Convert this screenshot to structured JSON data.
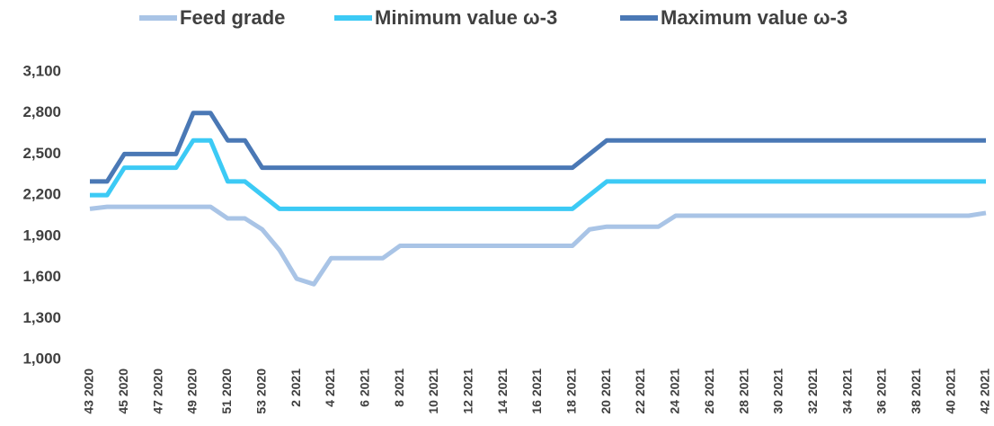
{
  "chart_data": {
    "type": "line",
    "categories": [
      "43 2020",
      null,
      "45 2020",
      null,
      "47 2020",
      null,
      "49 2020",
      null,
      "51 2020",
      null,
      "53 2020",
      null,
      "2 2021",
      null,
      "4 2021",
      null,
      "6 2021",
      null,
      "8 2021",
      null,
      "10 2021",
      null,
      "12 2021",
      null,
      "14 2021",
      null,
      "16 2021",
      null,
      "18 2021",
      null,
      "20 2021",
      null,
      "22 2021",
      null,
      "24 2021",
      null,
      "26 2021",
      null,
      "28 2021",
      null,
      "30 2021",
      null,
      "32 2021",
      null,
      "34 2021",
      null,
      "36 2021",
      null,
      "38 2021",
      null,
      "40 2021",
      null,
      "42 2021"
    ],
    "series": [
      {
        "name": "Feed grade",
        "color": "#a9c4e6",
        "values": [
          2100,
          2115,
          2115,
          2115,
          2115,
          2115,
          2115,
          2115,
          2030,
          2030,
          1950,
          1800,
          1590,
          1550,
          1740,
          1740,
          1740,
          1740,
          1830,
          1830,
          1830,
          1830,
          1830,
          1830,
          1830,
          1830,
          1830,
          1830,
          1830,
          1950,
          1970,
          1970,
          1970,
          1970,
          2050,
          2050,
          2050,
          2050,
          2050,
          2050,
          2050,
          2050,
          2050,
          2050,
          2050,
          2050,
          2050,
          2050,
          2050,
          2050,
          2050,
          2050,
          2070
        ]
      },
      {
        "name": "Minimum value ω-3",
        "color": "#3ccaf5",
        "values": [
          2200,
          2200,
          2400,
          2400,
          2400,
          2400,
          2600,
          2600,
          2300,
          2300,
          2200,
          2100,
          2100,
          2100,
          2100,
          2100,
          2100,
          2100,
          2100,
          2100,
          2100,
          2100,
          2100,
          2100,
          2100,
          2100,
          2100,
          2100,
          2100,
          2200,
          2300,
          2300,
          2300,
          2300,
          2300,
          2300,
          2300,
          2300,
          2300,
          2300,
          2300,
          2300,
          2300,
          2300,
          2300,
          2300,
          2300,
          2300,
          2300,
          2300,
          2300,
          2300,
          2300
        ]
      },
      {
        "name": "Maximum value ω-3",
        "color": "#4a78b5",
        "values": [
          2300,
          2300,
          2500,
          2500,
          2500,
          2500,
          2800,
          2800,
          2600,
          2600,
          2400,
          2400,
          2400,
          2400,
          2400,
          2400,
          2400,
          2400,
          2400,
          2400,
          2400,
          2400,
          2400,
          2400,
          2400,
          2400,
          2400,
          2400,
          2400,
          2500,
          2600,
          2600,
          2600,
          2600,
          2600,
          2600,
          2600,
          2600,
          2600,
          2600,
          2600,
          2600,
          2600,
          2600,
          2600,
          2600,
          2600,
          2600,
          2600,
          2600,
          2600,
          2600,
          2600
        ]
      }
    ],
    "ylim": [
      1000,
      3100
    ],
    "yticks": [
      {
        "value": 1000,
        "label": "1,000"
      },
      {
        "value": 1300,
        "label": "1,300"
      },
      {
        "value": 1600,
        "label": "1,600"
      },
      {
        "value": 1900,
        "label": "1,900"
      },
      {
        "value": 2200,
        "label": "2,200"
      },
      {
        "value": 2500,
        "label": "2,500"
      },
      {
        "value": 2800,
        "label": "2,800"
      },
      {
        "value": 3100,
        "label": "3,100"
      }
    ],
    "grid": false,
    "legend": "top"
  }
}
